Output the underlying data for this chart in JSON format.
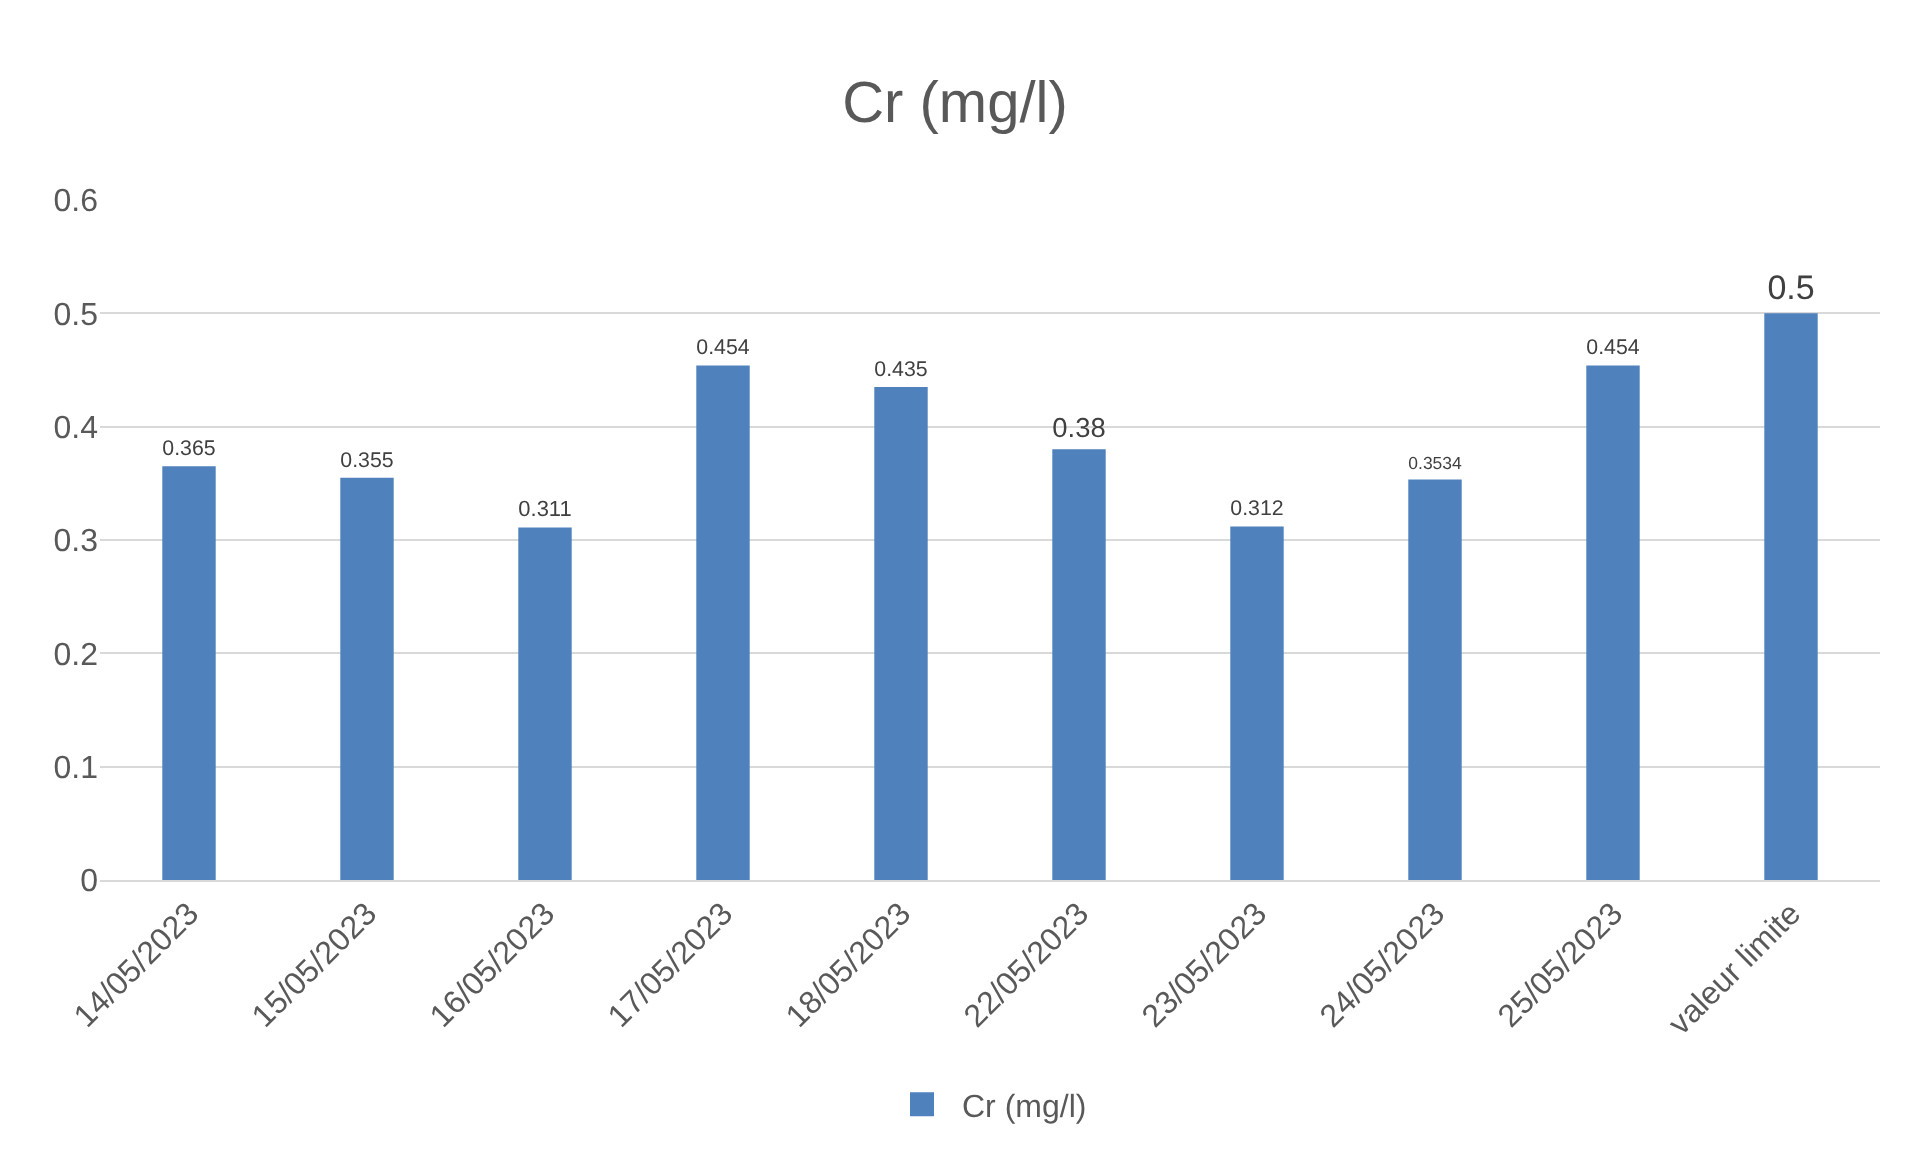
{
  "chart_data": {
    "type": "bar",
    "title": "Cr (mg/l)",
    "categories": [
      "14/05/2023",
      "15/05/2023",
      "16/05/2023",
      "17/05/2023",
      "18/05/2023",
      "22/05/2023",
      "23/05/2023",
      "24/05/2023",
      "25/05/2023",
      "valeur limite"
    ],
    "series": [
      {
        "name": "Cr (mg/l)",
        "color": "#4f81bd",
        "values": [
          0.365,
          0.355,
          0.311,
          0.454,
          0.435,
          0.38,
          0.312,
          0.3534,
          0.454,
          0.5
        ]
      }
    ],
    "ylim": [
      0,
      0.6
    ],
    "yticks": [
      0,
      0.1,
      0.2,
      0.3,
      0.4,
      0.5,
      0.6
    ],
    "grid": "y",
    "legend": "bottom",
    "data_labels": true
  }
}
